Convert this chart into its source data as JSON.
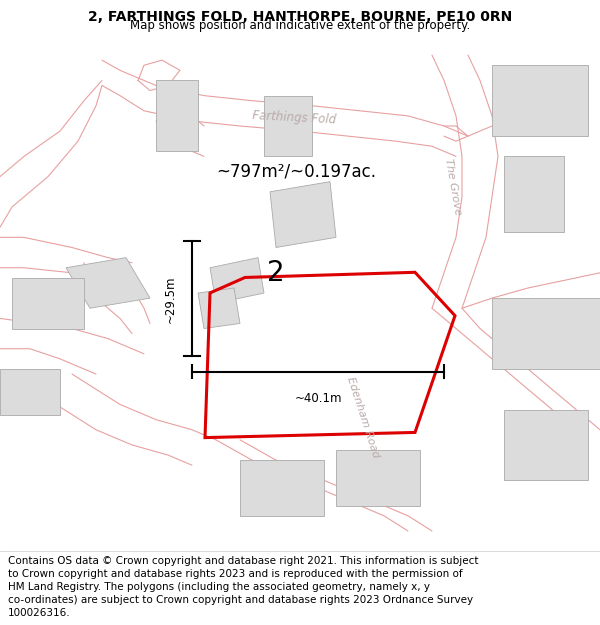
{
  "title_line1": "2, FARTHINGS FOLD, HANTHORPE, BOURNE, PE10 0RN",
  "title_line2": "Map shows position and indicative extent of the property.",
  "footer_lines": [
    "Contains OS data © Crown copyright and database right 2021. This information is subject",
    "to Crown copyright and database rights 2023 and is reproduced with the permission of",
    "HM Land Registry. The polygons (including the associated geometry, namely x, y",
    "co-ordinates) are subject to Crown copyright and database rights 2023 Ordnance Survey",
    "100026316."
  ],
  "area_text": "~797m²/~0.197ac.",
  "plot_number": "2",
  "width_label": "~40.1m",
  "height_label": "~29.5m",
  "road_label_1": "Farthings Fold",
  "road_label_2": "The Grove",
  "road_label_3": "Edenham Road",
  "bg_color": "#ffffff",
  "map_bg": "#f8f5f5",
  "red_plot_color": "#dd0000",
  "building_fill": "#dcdcdc",
  "building_edge": "#aaaaaa",
  "road_line_color": "#e8a0a0",
  "title_fontsize": 10,
  "footer_fontsize": 7.5
}
